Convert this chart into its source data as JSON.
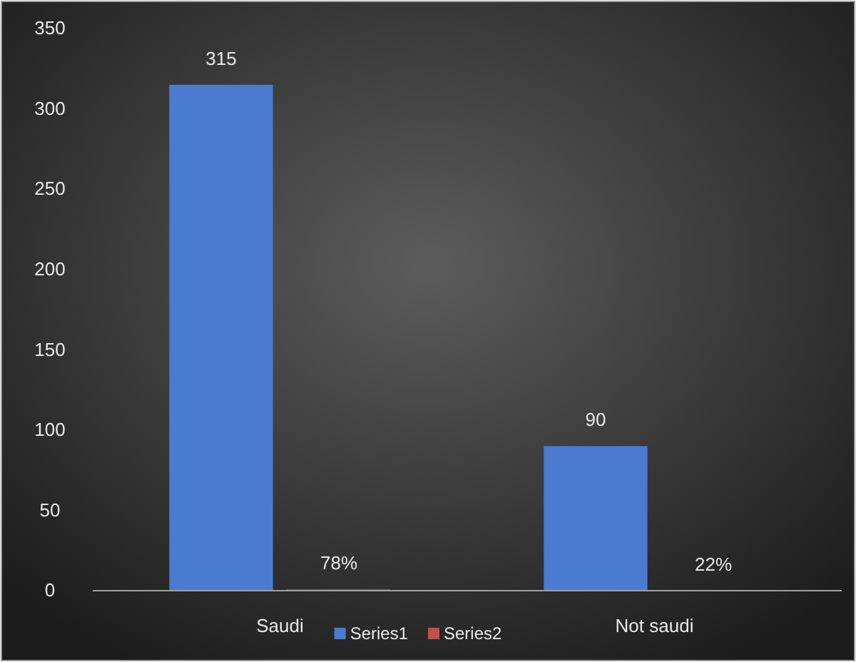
{
  "chart_data": {
    "type": "bar",
    "categories": [
      "Saudi",
      "Not saudi"
    ],
    "series": [
      {
        "name": "Series1",
        "color": "#4a7bd0",
        "values": [
          315,
          90
        ],
        "value_labels": [
          "315",
          "90"
        ]
      },
      {
        "name": "Series2",
        "color": "#c0504d",
        "values": [
          0.78,
          0.22
        ],
        "value_labels": [
          "78%",
          "22%"
        ]
      }
    ],
    "ylim": [
      0,
      350
    ],
    "yticks": [
      0,
      50,
      100,
      150,
      200,
      250,
      300,
      350
    ],
    "grid": false,
    "legend": "bottom"
  }
}
